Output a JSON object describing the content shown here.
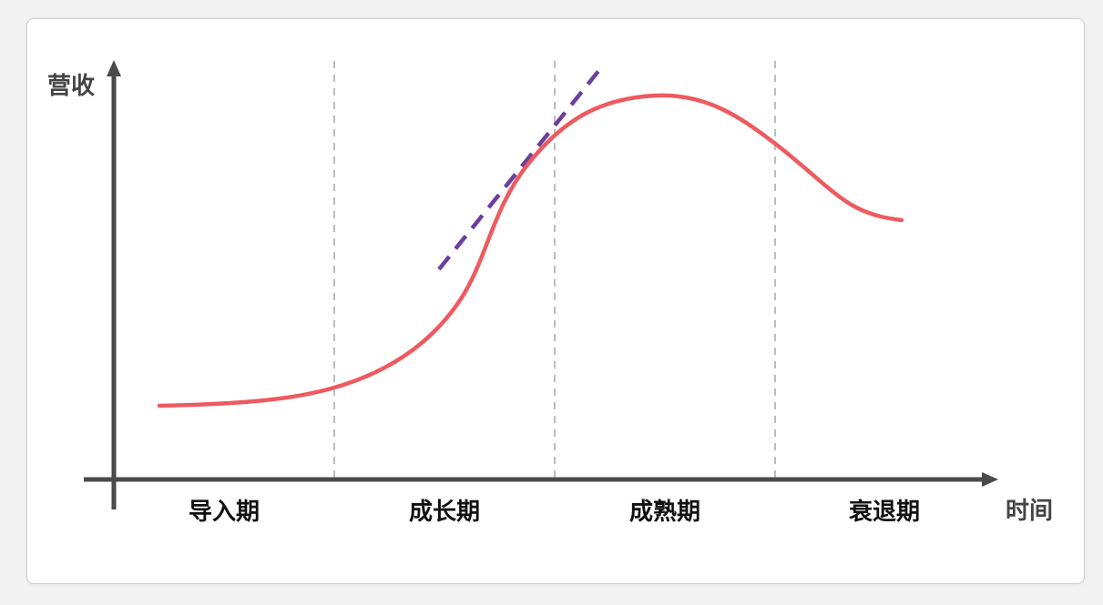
{
  "y_axis_label": "营收",
  "x_axis_label": "时间",
  "stages": [
    "导入期",
    "成长期",
    "成熟期",
    "衰退期"
  ],
  "colors": {
    "curve": "#ee5a5f",
    "tangent": "#6b3fa0",
    "axis": "#4a4a4a",
    "divider": "#bdbdbd"
  }
}
